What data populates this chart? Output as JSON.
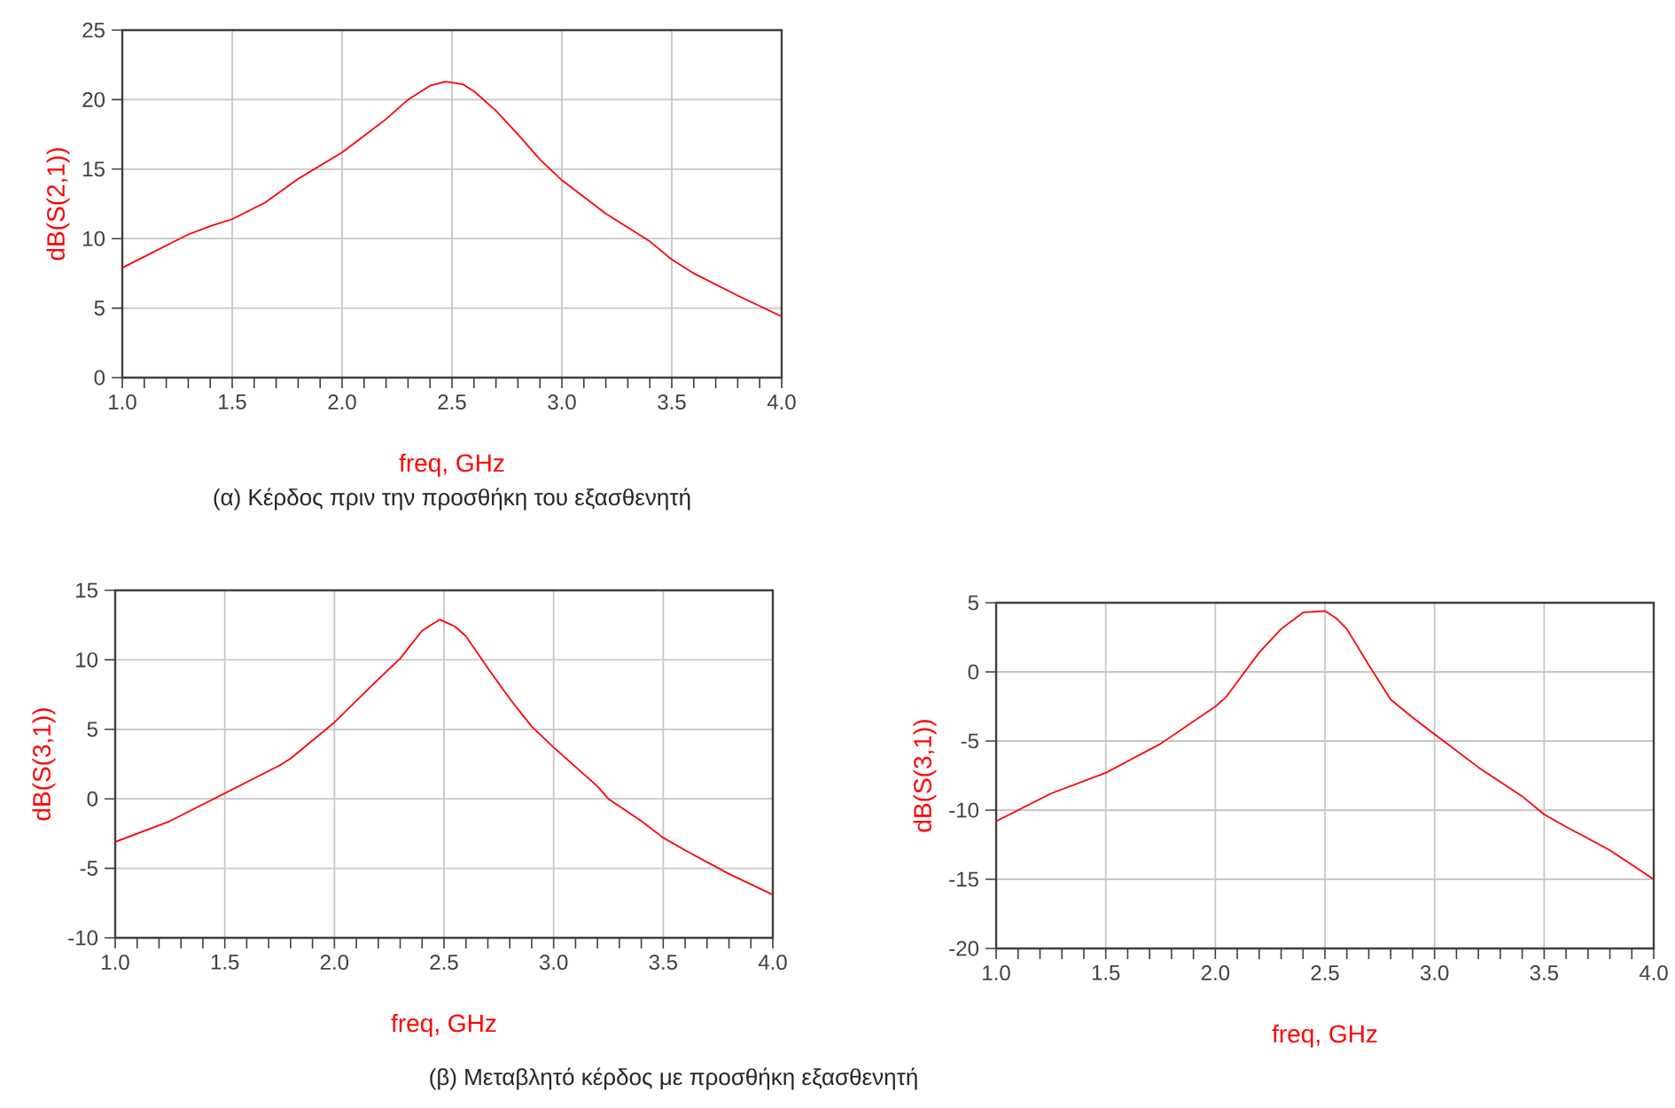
{
  "chart_data": [
    {
      "type": "line",
      "xlabel": "freq, GHz",
      "ylabel": "dB(S(2,1))",
      "annotations": [
        "(α) Κέρδος πριν την προσθήκη του εξασθενητή"
      ],
      "grid": true,
      "x": [
        1.0,
        1.1,
        1.2,
        1.3,
        1.4,
        1.5,
        1.65,
        1.8,
        2.0,
        2.1,
        2.2,
        2.3,
        2.4,
        2.47,
        2.55,
        2.6,
        2.7,
        2.8,
        2.9,
        3.0,
        3.2,
        3.4,
        3.5,
        3.6,
        3.8,
        4.0
      ],
      "series": [
        {
          "color": "#ff0000",
          "values": [
            7.9,
            8.7,
            9.5,
            10.3,
            10.9,
            11.4,
            12.6,
            14.3,
            16.2,
            17.4,
            18.6,
            20.0,
            21.0,
            21.3,
            21.1,
            20.6,
            19.2,
            17.5,
            15.7,
            14.2,
            11.8,
            9.8,
            8.5,
            7.5,
            5.9,
            4.4
          ]
        }
      ],
      "xlim": [
        1.0,
        4.0
      ],
      "ylim": [
        0,
        25
      ],
      "xticks": [
        {
          "value": 1.0,
          "label": "1.0"
        },
        {
          "value": 1.1,
          "label": null
        },
        {
          "value": 1.2,
          "label": null
        },
        {
          "value": 1.3,
          "label": null
        },
        {
          "value": 1.4,
          "label": null
        },
        {
          "value": 1.5,
          "label": "1.5"
        },
        {
          "value": 1.6,
          "label": null
        },
        {
          "value": 1.7,
          "label": null
        },
        {
          "value": 1.8,
          "label": null
        },
        {
          "value": 1.9,
          "label": null
        },
        {
          "value": 2.0,
          "label": "2.0"
        },
        {
          "value": 2.1,
          "label": null
        },
        {
          "value": 2.2,
          "label": null
        },
        {
          "value": 2.3,
          "label": null
        },
        {
          "value": 2.4,
          "label": null
        },
        {
          "value": 2.5,
          "label": "2.5"
        },
        {
          "value": 2.6,
          "label": null
        },
        {
          "value": 2.7,
          "label": null
        },
        {
          "value": 2.8,
          "label": null
        },
        {
          "value": 2.9,
          "label": null
        },
        {
          "value": 3.0,
          "label": "3.0"
        },
        {
          "value": 3.1,
          "label": null
        },
        {
          "value": 3.2,
          "label": null
        },
        {
          "value": 3.3,
          "label": null
        },
        {
          "value": 3.4,
          "label": null
        },
        {
          "value": 3.5,
          "label": "3.5"
        },
        {
          "value": 3.6,
          "label": null
        },
        {
          "value": 3.7,
          "label": null
        },
        {
          "value": 3.8,
          "label": null
        },
        {
          "value": 3.9,
          "label": null
        },
        {
          "value": 4.0,
          "label": "4.0"
        }
      ],
      "yticks": [
        0,
        5,
        10,
        15,
        20,
        25
      ]
    },
    {
      "type": "line",
      "xlabel": "freq, GHz",
      "ylabel": "dB(S(3,1))",
      "annotations": [
        "(β) Μεταβλητό κέρδος με προσθήκη εξασθενητή"
      ],
      "grid": true,
      "x": [
        1.0,
        1.25,
        1.5,
        1.75,
        1.8,
        2.0,
        2.2,
        2.3,
        2.4,
        2.48,
        2.55,
        2.6,
        2.7,
        2.8,
        2.9,
        3.0,
        3.2,
        3.25,
        3.4,
        3.5,
        3.6,
        3.8,
        4.0
      ],
      "series": [
        {
          "color": "#ff0000",
          "values": [
            -3.1,
            -1.6,
            0.4,
            2.4,
            2.9,
            5.5,
            8.6,
            10.1,
            12.1,
            12.9,
            12.4,
            11.7,
            9.4,
            7.2,
            5.2,
            3.7,
            0.9,
            0,
            -1.6,
            -2.8,
            -3.7,
            -5.4,
            -6.9
          ]
        }
      ],
      "xlim": [
        1.0,
        4.0
      ],
      "ylim": [
        -10,
        15
      ],
      "xticks": [
        {
          "value": 1.0,
          "label": "1.0"
        },
        {
          "value": 1.1,
          "label": null
        },
        {
          "value": 1.2,
          "label": null
        },
        {
          "value": 1.3,
          "label": null
        },
        {
          "value": 1.4,
          "label": null
        },
        {
          "value": 1.5,
          "label": "1.5"
        },
        {
          "value": 1.6,
          "label": null
        },
        {
          "value": 1.7,
          "label": null
        },
        {
          "value": 1.8,
          "label": null
        },
        {
          "value": 1.9,
          "label": null
        },
        {
          "value": 2.0,
          "label": "2.0"
        },
        {
          "value": 2.1,
          "label": null
        },
        {
          "value": 2.2,
          "label": null
        },
        {
          "value": 2.3,
          "label": null
        },
        {
          "value": 2.4,
          "label": null
        },
        {
          "value": 2.5,
          "label": "2.5"
        },
        {
          "value": 2.6,
          "label": null
        },
        {
          "value": 2.7,
          "label": null
        },
        {
          "value": 2.8,
          "label": null
        },
        {
          "value": 2.9,
          "label": null
        },
        {
          "value": 3.0,
          "label": "3.0"
        },
        {
          "value": 3.1,
          "label": null
        },
        {
          "value": 3.2,
          "label": null
        },
        {
          "value": 3.3,
          "label": null
        },
        {
          "value": 3.4,
          "label": null
        },
        {
          "value": 3.5,
          "label": "3.5"
        },
        {
          "value": 3.6,
          "label": null
        },
        {
          "value": 3.7,
          "label": null
        },
        {
          "value": 3.8,
          "label": null
        },
        {
          "value": 3.9,
          "label": null
        },
        {
          "value": 4.0,
          "label": "4.0"
        }
      ],
      "yticks": [
        -10,
        -5,
        0,
        5,
        10,
        15
      ]
    },
    {
      "type": "line",
      "xlabel": "freq, GHz",
      "ylabel": "dB(S(3,1))",
      "grid": true,
      "x": [
        1.0,
        1.25,
        1.5,
        1.75,
        2.0,
        2.05,
        2.2,
        2.3,
        2.4,
        2.5,
        2.55,
        2.6,
        2.7,
        2.8,
        2.9,
        3.0,
        3.2,
        3.4,
        3.5,
        3.6,
        3.8,
        4.0
      ],
      "series": [
        {
          "color": "#ff0000",
          "values": [
            -10.8,
            -8.8,
            -7.3,
            -5.2,
            -2.5,
            -1.8,
            1.4,
            3.1,
            4.3,
            4.4,
            3.9,
            3.1,
            0.5,
            -2.0,
            -3.3,
            -4.5,
            -6.9,
            -9.0,
            -10.3,
            -11.2,
            -12.9,
            -15.0
          ]
        }
      ],
      "xlim": [
        1.0,
        4.0
      ],
      "ylim": [
        -20,
        5
      ],
      "xticks": [
        {
          "value": 1.0,
          "label": "1.0"
        },
        {
          "value": 1.1,
          "label": null
        },
        {
          "value": 1.2,
          "label": null
        },
        {
          "value": 1.3,
          "label": null
        },
        {
          "value": 1.4,
          "label": null
        },
        {
          "value": 1.5,
          "label": "1.5"
        },
        {
          "value": 1.6,
          "label": null
        },
        {
          "value": 1.7,
          "label": null
        },
        {
          "value": 1.8,
          "label": null
        },
        {
          "value": 1.9,
          "label": null
        },
        {
          "value": 2.0,
          "label": "2.0"
        },
        {
          "value": 2.1,
          "label": null
        },
        {
          "value": 2.2,
          "label": null
        },
        {
          "value": 2.3,
          "label": null
        },
        {
          "value": 2.4,
          "label": null
        },
        {
          "value": 2.5,
          "label": "2.5"
        },
        {
          "value": 2.6,
          "label": null
        },
        {
          "value": 2.7,
          "label": null
        },
        {
          "value": 2.8,
          "label": null
        },
        {
          "value": 2.9,
          "label": null
        },
        {
          "value": 3.0,
          "label": "3.0"
        },
        {
          "value": 3.1,
          "label": null
        },
        {
          "value": 3.2,
          "label": null
        },
        {
          "value": 3.3,
          "label": null
        },
        {
          "value": 3.4,
          "label": null
        },
        {
          "value": 3.5,
          "label": "3.5"
        },
        {
          "value": 3.6,
          "label": null
        },
        {
          "value": 3.7,
          "label": null
        },
        {
          "value": 3.8,
          "label": null
        },
        {
          "value": 3.9,
          "label": null
        },
        {
          "value": 4.0,
          "label": "4.0"
        }
      ],
      "yticks": [
        -20,
        -15,
        -10,
        -5,
        0,
        5
      ]
    }
  ]
}
